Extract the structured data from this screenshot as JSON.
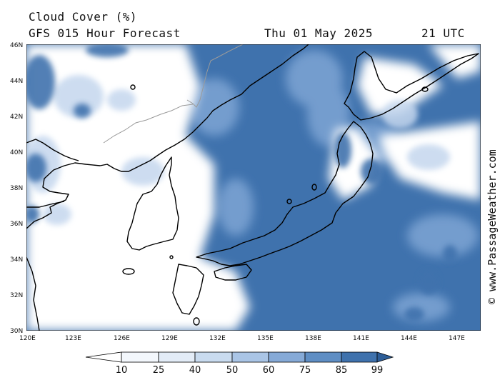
{
  "header": {
    "title": "Cloud Cover (%)",
    "subtitle": "GFS 015 Hour Forecast",
    "date": "Thu 01 May 2025",
    "time": "21 UTC"
  },
  "map": {
    "latitude_labels": [
      "46N",
      "44N",
      "42N",
      "40N",
      "38N",
      "36N",
      "34N",
      "32N",
      "30N"
    ],
    "longitude_labels": [
      "120E",
      "123E",
      "126E",
      "129E",
      "132E",
      "135E",
      "138E",
      "141E",
      "144E",
      "147E"
    ],
    "colors": {
      "water_dark": "#3f72ad",
      "mid": "#7aa2d2",
      "light": "#c5d7ee",
      "clear": "#ffffff",
      "coast": "#000000",
      "border": "#9a9a9a"
    }
  },
  "colorbar": {
    "ticks": [
      "10",
      "25",
      "40",
      "50",
      "60",
      "75",
      "85",
      "99"
    ],
    "colors": [
      "#ffffff",
      "#f3f7fc",
      "#e3ecf7",
      "#c9dbef",
      "#aac5e6",
      "#86aad7",
      "#5f8ec4",
      "#3f72ad",
      "#2d5d97"
    ]
  },
  "credit": "© www.PassageWeather.com"
}
